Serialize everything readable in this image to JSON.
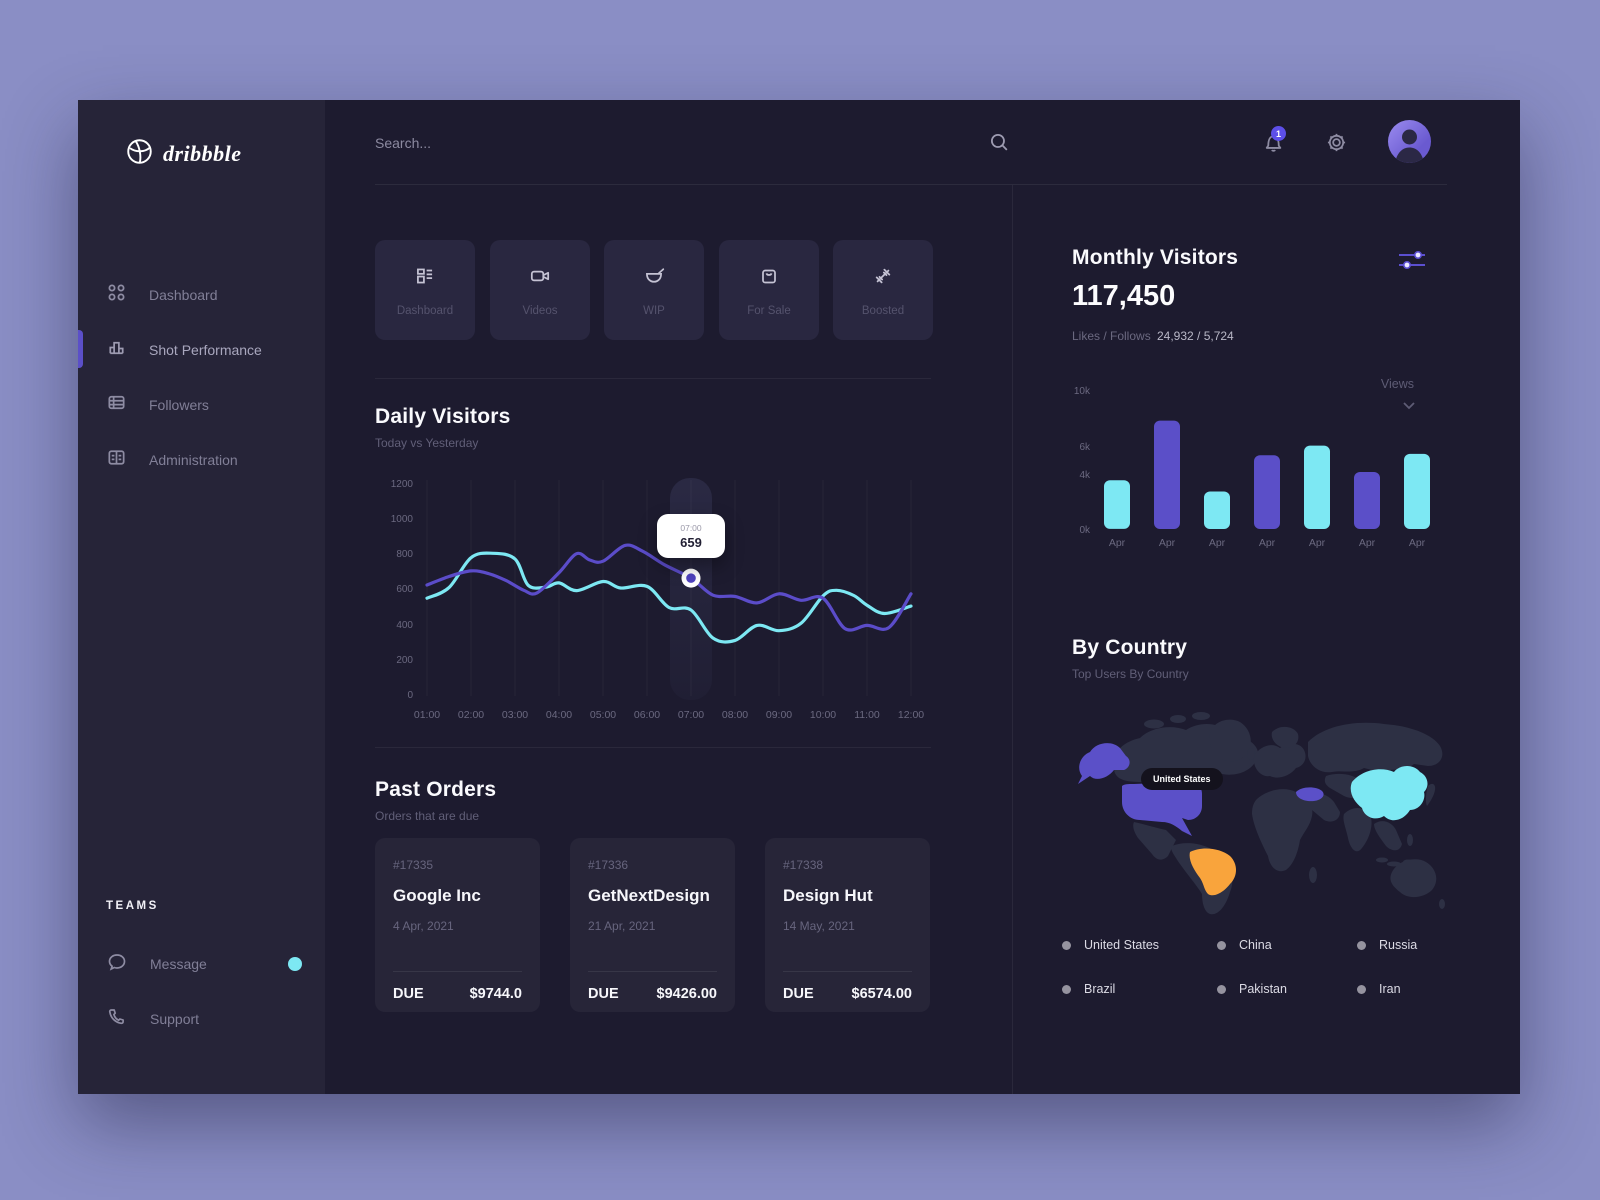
{
  "colors": {
    "outer_bg": "#8A8EC5",
    "window_bg": "#1D1B2F",
    "sidebar_bg": "#262438",
    "card_bg": "#292740",
    "accent_purple": "#5B4FC8",
    "accent_cyan": "#7DE8F3",
    "accent_orange": "#F9A43C",
    "badge_bg": "#5D4FE8",
    "muted_text": "#6B6980"
  },
  "sidebar": {
    "logo_text": "dribbble",
    "nav": [
      {
        "label": "Dashboard",
        "icon": "grid-dots-icon",
        "active": false
      },
      {
        "label": "Shot Performance",
        "icon": "bar-chart-icon",
        "active": true
      },
      {
        "label": "Followers",
        "icon": "list-icon",
        "active": false
      },
      {
        "label": "Administration",
        "icon": "cabinet-icon",
        "active": false
      }
    ],
    "teams_header": "TEAMS",
    "teams": [
      {
        "label": "Message",
        "icon": "chat-icon",
        "has_notification_dot": true
      },
      {
        "label": "Support",
        "icon": "phone-icon",
        "has_notification_dot": false
      }
    ]
  },
  "topbar": {
    "search_placeholder": "Search...",
    "notification_count": "1"
  },
  "categories": [
    {
      "label": "Dashboard",
      "icon": "layout-icon"
    },
    {
      "label": "Videos",
      "icon": "video-icon"
    },
    {
      "label": "WIP",
      "icon": "wip-icon"
    },
    {
      "label": "For Sale",
      "icon": "bag-icon"
    },
    {
      "label": "Boosted",
      "icon": "barbell-icon"
    }
  ],
  "daily_visitors": {
    "title": "Daily Visitors",
    "subtitle": "Today vs Yesterday"
  },
  "past_orders": {
    "title": "Past Orders",
    "subtitle": "Orders that are due",
    "due_label": "DUE",
    "orders": [
      {
        "id": "#17335",
        "name": "Google Inc",
        "date": "4 Apr, 2021",
        "amount": "$9744.0"
      },
      {
        "id": "#17336",
        "name": "GetNextDesign",
        "date": "21 Apr, 2021",
        "amount": "$9426.00"
      },
      {
        "id": "#17338",
        "name": "Design Hut",
        "date": "14 May, 2021",
        "amount": "$6574.00"
      }
    ]
  },
  "monthly_visitors": {
    "title": "Monthly Visitors",
    "value": "117,450",
    "likes_label": "Likes / Follows",
    "likes_value": "24,932 / 5,724",
    "views_label": "Views"
  },
  "by_country": {
    "title": "By Country",
    "subtitle": "Top Users By Country",
    "map_tooltip": "United States",
    "legend": [
      "United States",
      "China",
      "Russia",
      "Brazil",
      "Pakistan",
      "Iran"
    ]
  },
  "chart_data": [
    {
      "type": "line",
      "title": "Daily Visitors",
      "subtitle": "Today vs Yesterday",
      "x_labels": [
        "01:00",
        "02:00",
        "03:00",
        "04:00",
        "05:00",
        "06:00",
        "07:00",
        "08:00",
        "09:00",
        "10:00",
        "11:00",
        "12:00"
      ],
      "y_ticks": [
        "1200",
        "1000",
        "800",
        "600",
        "400",
        "200",
        "0"
      ],
      "ylim": [
        0,
        1200
      ],
      "grid": "vertical",
      "highlight_x": "07:00",
      "marker": {
        "x": 7,
        "y": 659,
        "label_time": "07:00",
        "label_value": "659"
      },
      "series": [
        {
          "name": "Yesterday",
          "color": "#7DE8F3",
          "points": [
            [
              1,
              545
            ],
            [
              1.5,
              605
            ],
            [
              2,
              775
            ],
            [
              2.5,
              800
            ],
            [
              3,
              768
            ],
            [
              3.3,
              618
            ],
            [
              3.7,
              608
            ],
            [
              4,
              632
            ],
            [
              4.4,
              588
            ],
            [
              5,
              640
            ],
            [
              5.4,
              603
            ],
            [
              6,
              612
            ],
            [
              6.5,
              492
            ],
            [
              7,
              478
            ],
            [
              7.5,
              318
            ],
            [
              8,
              305
            ],
            [
              8.5,
              390
            ],
            [
              9,
              360
            ],
            [
              9.5,
              402
            ],
            [
              10,
              558
            ],
            [
              10.3,
              590
            ],
            [
              10.7,
              560
            ],
            [
              11,
              505
            ],
            [
              11.4,
              458
            ],
            [
              12,
              500
            ]
          ]
        },
        {
          "name": "Today",
          "color": "#5B4CC9",
          "points": [
            [
              1,
              620
            ],
            [
              1.5,
              668
            ],
            [
              2,
              700
            ],
            [
              2.4,
              685
            ],
            [
              2.8,
              645
            ],
            [
              3.2,
              590
            ],
            [
              3.5,
              575
            ],
            [
              4,
              690
            ],
            [
              4.4,
              798
            ],
            [
              4.7,
              762
            ],
            [
              5,
              755
            ],
            [
              5.5,
              845
            ],
            [
              5.9,
              812
            ],
            [
              6.4,
              735
            ],
            [
              7,
              659
            ],
            [
              7.5,
              562
            ],
            [
              8,
              555
            ],
            [
              8.5,
              518
            ],
            [
              9,
              570
            ],
            [
              9.5,
              533
            ],
            [
              10,
              545
            ],
            [
              10.5,
              372
            ],
            [
              11,
              390
            ],
            [
              11.5,
              378
            ],
            [
              12,
              570
            ]
          ]
        }
      ]
    },
    {
      "type": "bar",
      "categories": [
        "Apr",
        "Apr",
        "Apr",
        "Apr",
        "Apr",
        "Apr",
        "Apr"
      ],
      "values": [
        3.5,
        7.8,
        2.7,
        5.3,
        6.0,
        4.1,
        5.4
      ],
      "unit": "k",
      "ylim": [
        0,
        10
      ],
      "y_ticks": [
        "10k",
        "6k",
        "4k",
        "0k"
      ],
      "colors": [
        "#7DE8F3",
        "#5B4FC8",
        "#7DE8F3",
        "#5B4FC8",
        "#7DE8F3",
        "#5B4FC8",
        "#7DE8F3"
      ],
      "ylabel": "Views"
    }
  ]
}
